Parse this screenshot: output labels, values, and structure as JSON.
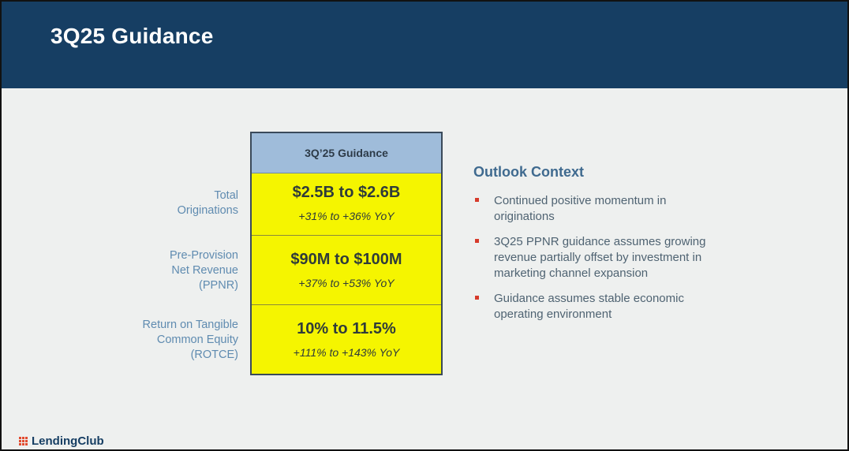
{
  "slide": {
    "title": "3Q25 Guidance"
  },
  "table": {
    "header": "3Q’25 Guidance",
    "rows": [
      {
        "label": [
          "Total",
          "Originations"
        ],
        "value": "$2.5B to $2.6B",
        "yoy": "+31% to +36% YoY"
      },
      {
        "label": [
          "Pre-Provision",
          "Net Revenue",
          "(PPNR)"
        ],
        "value": "$90M to $100M",
        "yoy": "+37% to +53% YoY"
      },
      {
        "label": [
          "Return on Tangible",
          "Common Equity",
          "(ROTCE)"
        ],
        "value": "10% to 11.5%",
        "yoy": "+111% to +143% YoY"
      }
    ]
  },
  "outlook": {
    "heading": "Outlook Context",
    "bullets": [
      "Continued positive momentum in originations",
      "3Q25 PPNR guidance assumes growing revenue partially offset by investment in marketing channel expansion",
      "Guidance assumes stable economic operating environment"
    ]
  },
  "footer": {
    "logo_text": "LendingClub",
    "logo_icon": "lendingclub-grid-icon"
  },
  "colors": {
    "header_bg": "#163e63",
    "table_header_bg": "#9fbcda",
    "table_cell_bg": "#f5f500",
    "label_text": "#5f8bb0",
    "heading_text": "#3f6a8f",
    "bullet_mark": "#d63b2b"
  }
}
